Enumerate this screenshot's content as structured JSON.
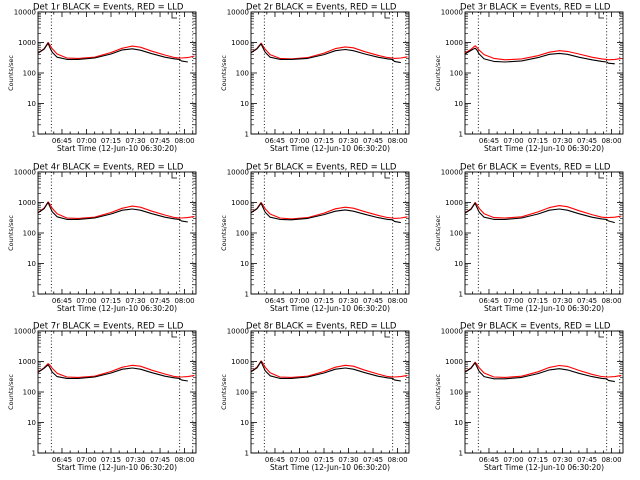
{
  "figure": {
    "x_tick_labels": [
      "06:45",
      "07:00",
      "07:15",
      "07:30",
      "07:45",
      "08:00"
    ],
    "y_tick_labels": [
      "1",
      "10",
      "100",
      "1000",
      "10000"
    ],
    "xlabel": "Start Time (12-Jun-10 06:30:20)",
    "ylabel": "Counts/sec",
    "series_colors": {
      "events": "#000000",
      "lld": "#ff0000"
    }
  },
  "chart_data": [
    {
      "type": "line",
      "title": "Det 1r BLACK = Events, RED = LLD",
      "y_scale": "log",
      "ylim": [
        1,
        10000
      ],
      "xlim": [
        "06:30:20",
        "08:07:00"
      ],
      "grid": false,
      "vlines": [
        "06:38:30",
        "07:57:00",
        "08:05:00"
      ],
      "x": [
        "06:30:20",
        "06:34:00",
        "06:36:30",
        "06:37:30",
        "06:39:00",
        "06:42:00",
        "06:48:00",
        "06:55:00",
        "07:05:00",
        "07:15:00",
        "07:22:00",
        "07:28:00",
        "07:33:00",
        "07:40:00",
        "07:48:00",
        "07:54:00",
        "07:57:00",
        "07:58:00",
        "08:02:00",
        "08:06:00"
      ],
      "series": [
        {
          "values": [
            450,
            600,
            950,
            700,
            480,
            330,
            280,
            280,
            310,
            420,
            570,
            620,
            560,
            430,
            330,
            290,
            280,
            250,
            230,
            null
          ]
        },
        {
          "values": [
            460,
            620,
            1000,
            850,
            620,
            420,
            310,
            300,
            330,
            470,
            650,
            760,
            700,
            520,
            390,
            320,
            310,
            310,
            320,
            360
          ]
        }
      ]
    },
    {
      "type": "line",
      "title": "Det 2r BLACK = Events, RED = LLD",
      "y_scale": "log",
      "ylim": [
        1,
        10000
      ],
      "xlim": [
        "06:30:20",
        "08:07:00"
      ],
      "grid": false,
      "vlines": [
        "06:38:30",
        "07:57:00",
        "08:05:00"
      ],
      "x": [
        "06:30:20",
        "06:34:00",
        "06:36:30",
        "06:37:30",
        "06:39:00",
        "06:42:00",
        "06:48:00",
        "06:55:00",
        "07:05:00",
        "07:15:00",
        "07:22:00",
        "07:28:00",
        "07:33:00",
        "07:40:00",
        "07:48:00",
        "07:54:00",
        "07:57:00",
        "07:58:00",
        "08:02:00",
        "08:06:00"
      ],
      "series": [
        {
          "values": [
            460,
            620,
            900,
            700,
            480,
            330,
            280,
            280,
            300,
            400,
            540,
            590,
            540,
            420,
            330,
            290,
            280,
            240,
            220,
            null
          ]
        },
        {
          "values": [
            470,
            640,
            950,
            800,
            600,
            400,
            300,
            290,
            320,
            450,
            630,
            720,
            670,
            500,
            380,
            320,
            310,
            300,
            310,
            340
          ]
        }
      ]
    },
    {
      "type": "line",
      "title": "Det 3r BLACK = Events, RED = LLD",
      "y_scale": "log",
      "ylim": [
        1,
        10000
      ],
      "xlim": [
        "06:30:20",
        "08:07:00"
      ],
      "grid": false,
      "vlines": [
        "06:38:30",
        "07:57:00",
        "08:05:00"
      ],
      "x": [
        "06:30:20",
        "06:34:00",
        "06:36:30",
        "06:37:30",
        "06:39:00",
        "06:42:00",
        "06:48:00",
        "06:55:00",
        "07:05:00",
        "07:15:00",
        "07:22:00",
        "07:28:00",
        "07:33:00",
        "07:40:00",
        "07:48:00",
        "07:54:00",
        "07:57:00",
        "07:58:00",
        "08:02:00",
        "08:06:00"
      ],
      "series": [
        {
          "values": [
            420,
            550,
            650,
            580,
            420,
            290,
            240,
            230,
            250,
            320,
            410,
            440,
            410,
            330,
            270,
            240,
            230,
            210,
            200,
            null
          ]
        },
        {
          "values": [
            450,
            600,
            780,
            700,
            560,
            400,
            300,
            270,
            290,
            370,
            480,
            540,
            510,
            420,
            330,
            290,
            280,
            270,
            280,
            300
          ]
        }
      ]
    },
    {
      "type": "line",
      "title": "Det 4r BLACK = Events, RED = LLD",
      "y_scale": "log",
      "ylim": [
        1,
        10000
      ],
      "xlim": [
        "06:30:20",
        "08:07:00"
      ],
      "grid": false,
      "vlines": [
        "06:38:30",
        "07:57:00",
        "08:05:00"
      ],
      "x": [
        "06:30:20",
        "06:34:00",
        "06:36:30",
        "06:37:30",
        "06:39:00",
        "06:42:00",
        "06:48:00",
        "06:55:00",
        "07:05:00",
        "07:15:00",
        "07:22:00",
        "07:28:00",
        "07:33:00",
        "07:40:00",
        "07:48:00",
        "07:54:00",
        "07:57:00",
        "07:58:00",
        "08:02:00",
        "08:06:00"
      ],
      "series": [
        {
          "values": [
            460,
            620,
            1000,
            750,
            500,
            340,
            280,
            280,
            310,
            420,
            560,
            610,
            560,
            430,
            330,
            290,
            280,
            250,
            230,
            null
          ]
        },
        {
          "values": [
            470,
            650,
            1050,
            900,
            650,
            430,
            310,
            300,
            330,
            470,
            650,
            760,
            700,
            520,
            390,
            320,
            310,
            310,
            320,
            350
          ]
        }
      ]
    },
    {
      "type": "line",
      "title": "Det 5r BLACK = Events, RED = LLD",
      "y_scale": "log",
      "ylim": [
        1,
        10000
      ],
      "xlim": [
        "06:30:20",
        "08:07:00"
      ],
      "grid": false,
      "vlines": [
        "06:38:30",
        "07:57:00",
        "08:05:00"
      ],
      "x": [
        "06:30:20",
        "06:34:00",
        "06:36:30",
        "06:37:30",
        "06:39:00",
        "06:42:00",
        "06:48:00",
        "06:55:00",
        "07:05:00",
        "07:15:00",
        "07:22:00",
        "07:28:00",
        "07:33:00",
        "07:40:00",
        "07:48:00",
        "07:54:00",
        "07:57:00",
        "07:58:00",
        "08:02:00",
        "08:06:00"
      ],
      "series": [
        {
          "values": [
            460,
            620,
            950,
            720,
            480,
            330,
            280,
            270,
            300,
            400,
            520,
            570,
            520,
            410,
            320,
            280,
            270,
            240,
            220,
            null
          ]
        },
        {
          "values": [
            470,
            640,
            1000,
            850,
            620,
            420,
            310,
            290,
            320,
            450,
            620,
            700,
            650,
            500,
            380,
            320,
            310,
            300,
            310,
            340
          ]
        }
      ]
    },
    {
      "type": "line",
      "title": "Det 6r BLACK = Events, RED = LLD",
      "y_scale": "log",
      "ylim": [
        1,
        10000
      ],
      "xlim": [
        "06:30:20",
        "08:07:00"
      ],
      "grid": false,
      "vlines": [
        "06:38:30",
        "07:57:00",
        "08:05:00"
      ],
      "x": [
        "06:30:20",
        "06:34:00",
        "06:36:30",
        "06:37:30",
        "06:39:00",
        "06:42:00",
        "06:48:00",
        "06:55:00",
        "07:05:00",
        "07:15:00",
        "07:22:00",
        "07:28:00",
        "07:33:00",
        "07:40:00",
        "07:48:00",
        "07:54:00",
        "07:57:00",
        "07:58:00",
        "08:02:00",
        "08:06:00"
      ],
      "series": [
        {
          "values": [
            450,
            600,
            950,
            720,
            480,
            330,
            280,
            280,
            310,
            420,
            560,
            610,
            560,
            430,
            330,
            290,
            280,
            250,
            220,
            null
          ]
        },
        {
          "values": [
            460,
            620,
            1000,
            880,
            640,
            430,
            320,
            310,
            340,
            490,
            680,
            790,
            730,
            540,
            400,
            330,
            320,
            320,
            330,
            360
          ]
        }
      ]
    },
    {
      "type": "line",
      "title": "Det 7r BLACK = Events, RED = LLD",
      "y_scale": "log",
      "ylim": [
        1,
        10000
      ],
      "xlim": [
        "06:30:20",
        "08:07:00"
      ],
      "grid": false,
      "vlines": [
        "06:38:30",
        "07:57:00",
        "08:05:00"
      ],
      "x": [
        "06:30:20",
        "06:34:00",
        "06:36:30",
        "06:37:30",
        "06:39:00",
        "06:42:00",
        "06:48:00",
        "06:55:00",
        "07:05:00",
        "07:15:00",
        "07:22:00",
        "07:28:00",
        "07:33:00",
        "07:40:00",
        "07:48:00",
        "07:54:00",
        "07:57:00",
        "07:58:00",
        "08:02:00",
        "08:06:00"
      ],
      "series": [
        {
          "values": [
            440,
            600,
            780,
            650,
            450,
            320,
            280,
            280,
            310,
            420,
            560,
            610,
            560,
            430,
            330,
            290,
            280,
            250,
            230,
            null
          ]
        },
        {
          "values": [
            450,
            620,
            850,
            780,
            600,
            410,
            310,
            300,
            330,
            470,
            650,
            750,
            700,
            520,
            390,
            320,
            310,
            310,
            320,
            350
          ]
        }
      ]
    },
    {
      "type": "line",
      "title": "Det 8r BLACK = Events, RED = LLD",
      "y_scale": "log",
      "ylim": [
        1,
        10000
      ],
      "xlim": [
        "06:30:20",
        "08:07:00"
      ],
      "grid": false,
      "vlines": [
        "06:38:30",
        "07:57:00",
        "08:05:00"
      ],
      "x": [
        "06:30:20",
        "06:34:00",
        "06:36:30",
        "06:37:30",
        "06:39:00",
        "06:42:00",
        "06:48:00",
        "06:55:00",
        "07:05:00",
        "07:15:00",
        "07:22:00",
        "07:28:00",
        "07:33:00",
        "07:40:00",
        "07:48:00",
        "07:54:00",
        "07:57:00",
        "07:58:00",
        "08:02:00",
        "08:06:00"
      ],
      "series": [
        {
          "values": [
            460,
            620,
            1000,
            750,
            500,
            340,
            280,
            280,
            310,
            420,
            560,
            610,
            560,
            430,
            330,
            290,
            280,
            250,
            230,
            null
          ]
        },
        {
          "values": [
            470,
            650,
            1050,
            900,
            650,
            430,
            310,
            300,
            330,
            470,
            650,
            750,
            700,
            520,
            390,
            320,
            310,
            310,
            320,
            350
          ]
        }
      ]
    },
    {
      "type": "line",
      "title": "Det 9r BLACK = Events, RED = LLD",
      "y_scale": "log",
      "ylim": [
        1,
        10000
      ],
      "xlim": [
        "06:30:20",
        "08:07:00"
      ],
      "grid": false,
      "vlines": [
        "06:38:30",
        "07:57:00",
        "08:05:00"
      ],
      "x": [
        "06:30:20",
        "06:34:00",
        "06:36:30",
        "06:37:30",
        "06:39:00",
        "06:42:00",
        "06:48:00",
        "06:55:00",
        "07:05:00",
        "07:15:00",
        "07:22:00",
        "07:28:00",
        "07:33:00",
        "07:40:00",
        "07:48:00",
        "07:54:00",
        "07:57:00",
        "07:58:00",
        "08:02:00",
        "08:06:00"
      ],
      "series": [
        {
          "values": [
            450,
            600,
            900,
            700,
            470,
            320,
            270,
            270,
            300,
            400,
            530,
            580,
            530,
            410,
            320,
            280,
            270,
            240,
            220,
            null
          ]
        },
        {
          "values": [
            460,
            620,
            950,
            830,
            620,
            420,
            310,
            300,
            330,
            460,
            640,
            740,
            690,
            510,
            380,
            320,
            310,
            310,
            320,
            350
          ]
        }
      ]
    }
  ]
}
